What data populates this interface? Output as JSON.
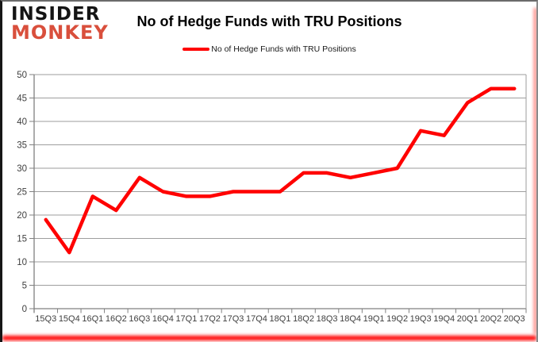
{
  "logo": {
    "line1": "INSIDER",
    "line2": "MONKEY"
  },
  "header": {
    "title": "No of Hedge Funds with TRU Positions"
  },
  "legend": {
    "label": "No of Hedge Funds with TRU Positions"
  },
  "colors": {
    "series_line": "#ff0000",
    "logo_red": "#d94f3c",
    "gridline": "#9e9e9e",
    "axis": "#808080",
    "tick_label": "#3f3f3f",
    "title": "#000000"
  },
  "chart_data": {
    "type": "line",
    "title": "No of Hedge Funds with TRU Positions",
    "categories": [
      "15Q3",
      "15Q4",
      "16Q1",
      "16Q2",
      "16Q3",
      "16Q4",
      "17Q1",
      "17Q2",
      "17Q3",
      "17Q4",
      "18Q1",
      "18Q2",
      "18Q3",
      "18Q4",
      "19Q1",
      "19Q2",
      "19Q3",
      "19Q4",
      "20Q1",
      "20Q2",
      "20Q3"
    ],
    "series": [
      {
        "name": "No of Hedge Funds with TRU Positions",
        "color": "#ff0000",
        "values": [
          19,
          12,
          24,
          21,
          28,
          25,
          24,
          24,
          25,
          25,
          25,
          29,
          29,
          28,
          29,
          30,
          38,
          37,
          44,
          47,
          47
        ]
      }
    ],
    "xlabel": "",
    "ylabel": "",
    "ylim": [
      0,
      50
    ],
    "ytick_step": 5,
    "grid": true,
    "legend_position": "top-center"
  }
}
